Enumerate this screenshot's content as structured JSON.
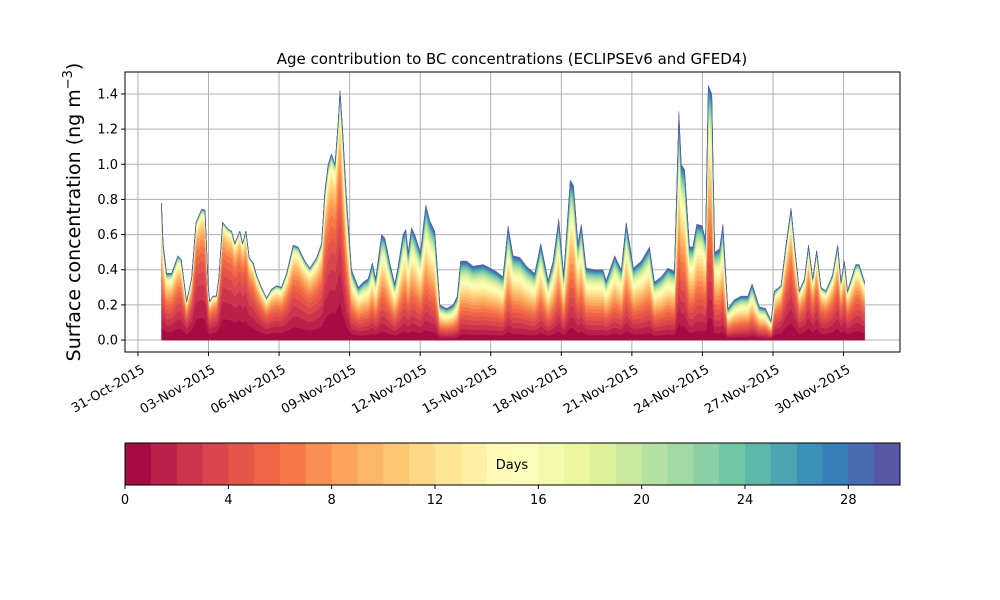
{
  "chart_data": {
    "type": "area",
    "stacked": true,
    "title": "Age contribution to BC concentrations (ECLIPSEv6 and GFED4)",
    "xlabel": "",
    "ylabel": "Surface concentration (ng m",
    "ylabel_sup": "−3",
    "ylabel_close": ")",
    "ylim": [
      -0.068,
      1.525
    ],
    "yticks": [
      "0.0",
      "0.2",
      "0.4",
      "0.6",
      "0.8",
      "1.0",
      "1.2",
      "1.4"
    ],
    "ytick_values": [
      0,
      0.2,
      0.4,
      0.6,
      0.8,
      1.0,
      1.2,
      1.4
    ],
    "x_units": "days since 01-Nov-2015",
    "xlim": [
      -1.55,
      31.4
    ],
    "xticks": [
      "31-Oct-2015",
      "03-Nov-2015",
      "06-Nov-2015",
      "09-Nov-2015",
      "12-Nov-2015",
      "15-Nov-2015",
      "18-Nov-2015",
      "21-Nov-2015",
      "24-Nov-2015",
      "27-Nov-2015",
      "30-Nov-2015"
    ],
    "xtick_values": [
      -1,
      2,
      5,
      8,
      11,
      14,
      17,
      20,
      23,
      26,
      29
    ],
    "grid": true,
    "series_description": "30 stacked age bins (0-1 ... 29-30 days); total shown below, age split by median-age profile",
    "total": [
      [
        0,
        0.78
      ],
      [
        0.07,
        0.55
      ],
      [
        0.22,
        0.38
      ],
      [
        0.43,
        0.38
      ],
      [
        0.7,
        0.48
      ],
      [
        0.84,
        0.46
      ],
      [
        1.07,
        0.22
      ],
      [
        1.28,
        0.35
      ],
      [
        1.47,
        0.67
      ],
      [
        1.71,
        0.745
      ],
      [
        1.85,
        0.74
      ],
      [
        1.99,
        0.3
      ],
      [
        2.05,
        0.22
      ],
      [
        2.19,
        0.25
      ],
      [
        2.33,
        0.25
      ],
      [
        2.44,
        0.35
      ],
      [
        2.6,
        0.67
      ],
      [
        2.84,
        0.63
      ],
      [
        2.98,
        0.62
      ],
      [
        3.12,
        0.55
      ],
      [
        3.33,
        0.62
      ],
      [
        3.45,
        0.55
      ],
      [
        3.59,
        0.62
      ],
      [
        3.73,
        0.47
      ],
      [
        3.9,
        0.44
      ],
      [
        4.04,
        0.37
      ],
      [
        4.25,
        0.3
      ],
      [
        4.47,
        0.24
      ],
      [
        4.68,
        0.29
      ],
      [
        4.9,
        0.31
      ],
      [
        5.1,
        0.3
      ],
      [
        5.32,
        0.38
      ],
      [
        5.6,
        0.54
      ],
      [
        5.81,
        0.53
      ],
      [
        6.1,
        0.45
      ],
      [
        6.31,
        0.41
      ],
      [
        6.6,
        0.47
      ],
      [
        6.81,
        0.55
      ],
      [
        6.95,
        0.85
      ],
      [
        7.09,
        1.0
      ],
      [
        7.23,
        1.06
      ],
      [
        7.38,
        1.0
      ],
      [
        7.52,
        1.25
      ],
      [
        7.59,
        1.42
      ],
      [
        7.7,
        1.2
      ],
      [
        7.87,
        0.8
      ],
      [
        8.08,
        0.4
      ],
      [
        8.37,
        0.3
      ],
      [
        8.58,
        0.33
      ],
      [
        8.79,
        0.35
      ],
      [
        8.97,
        0.44
      ],
      [
        9.11,
        0.35
      ],
      [
        9.36,
        0.6
      ],
      [
        9.5,
        0.58
      ],
      [
        9.71,
        0.44
      ],
      [
        9.92,
        0.32
      ],
      [
        10.06,
        0.42
      ],
      [
        10.27,
        0.6
      ],
      [
        10.39,
        0.63
      ],
      [
        10.49,
        0.5
      ],
      [
        10.63,
        0.64
      ],
      [
        10.77,
        0.6
      ],
      [
        11.01,
        0.5
      ],
      [
        11.24,
        0.77
      ],
      [
        11.41,
        0.68
      ],
      [
        11.62,
        0.62
      ],
      [
        11.84,
        0.2
      ],
      [
        12.12,
        0.18
      ],
      [
        12.4,
        0.2
      ],
      [
        12.58,
        0.25
      ],
      [
        12.72,
        0.45
      ],
      [
        12.97,
        0.45
      ],
      [
        13.26,
        0.42
      ],
      [
        13.68,
        0.43
      ],
      [
        13.97,
        0.41
      ],
      [
        14.24,
        0.39
      ],
      [
        14.52,
        0.36
      ],
      [
        14.74,
        0.65
      ],
      [
        14.95,
        0.48
      ],
      [
        15.24,
        0.47
      ],
      [
        15.52,
        0.42
      ],
      [
        15.87,
        0.38
      ],
      [
        16.13,
        0.55
      ],
      [
        16.44,
        0.34
      ],
      [
        16.65,
        0.45
      ],
      [
        16.89,
        0.69
      ],
      [
        17.1,
        0.37
      ],
      [
        17.38,
        0.91
      ],
      [
        17.52,
        0.88
      ],
      [
        17.71,
        0.55
      ],
      [
        17.85,
        0.66
      ],
      [
        18.06,
        0.41
      ],
      [
        18.42,
        0.4
      ],
      [
        18.77,
        0.4
      ],
      [
        18.91,
        0.34
      ],
      [
        19.27,
        0.48
      ],
      [
        19.55,
        0.4
      ],
      [
        19.76,
        0.67
      ],
      [
        20.07,
        0.41
      ],
      [
        20.4,
        0.45
      ],
      [
        20.75,
        0.53
      ],
      [
        20.96,
        0.33
      ],
      [
        21.25,
        0.36
      ],
      [
        21.53,
        0.41
      ],
      [
        21.81,
        0.39
      ],
      [
        22.0,
        1.3
      ],
      [
        22.1,
        1.0
      ],
      [
        22.24,
        0.97
      ],
      [
        22.45,
        0.53
      ],
      [
        22.59,
        0.53
      ],
      [
        22.76,
        0.66
      ],
      [
        22.99,
        0.65
      ],
      [
        23.13,
        0.57
      ],
      [
        23.25,
        1.45
      ],
      [
        23.4,
        1.4
      ],
      [
        23.52,
        0.5
      ],
      [
        23.73,
        0.52
      ],
      [
        23.87,
        0.66
      ],
      [
        24.08,
        0.18
      ],
      [
        24.36,
        0.23
      ],
      [
        24.65,
        0.25
      ],
      [
        24.93,
        0.25
      ],
      [
        25.11,
        0.32
      ],
      [
        25.42,
        0.19
      ],
      [
        25.68,
        0.18
      ],
      [
        25.92,
        0.11
      ],
      [
        26.06,
        0.28
      ],
      [
        26.34,
        0.31
      ],
      [
        26.56,
        0.55
      ],
      [
        26.77,
        0.75
      ],
      [
        26.91,
        0.55
      ],
      [
        27.12,
        0.28
      ],
      [
        27.34,
        0.35
      ],
      [
        27.51,
        0.54
      ],
      [
        27.69,
        0.35
      ],
      [
        27.86,
        0.51
      ],
      [
        28.04,
        0.3
      ],
      [
        28.25,
        0.28
      ],
      [
        28.53,
        0.37
      ],
      [
        28.75,
        0.54
      ],
      [
        28.89,
        0.33
      ],
      [
        29.03,
        0.45
      ],
      [
        29.17,
        0.28
      ],
      [
        29.52,
        0.43
      ],
      [
        29.66,
        0.43
      ],
      [
        29.9,
        0.33
      ]
    ],
    "median_age_profile_days": [
      [
        0,
        9
      ],
      [
        1.5,
        5
      ],
      [
        2,
        6
      ],
      [
        2.5,
        5
      ],
      [
        3.5,
        5
      ],
      [
        4.5,
        7
      ],
      [
        6.5,
        7
      ],
      [
        7.6,
        6
      ],
      [
        8,
        12
      ],
      [
        11,
        14
      ],
      [
        12,
        16
      ],
      [
        20,
        14
      ],
      [
        22,
        14
      ],
      [
        23.3,
        12
      ],
      [
        24,
        16
      ],
      [
        25.9,
        16
      ],
      [
        26.1,
        7
      ],
      [
        29.9,
        8
      ]
    ],
    "colorbar": {
      "label": "Days",
      "range": [
        0,
        30
      ],
      "bins": 30,
      "ticks": [
        "0",
        "4",
        "8",
        "12",
        "16",
        "20",
        "24",
        "28"
      ],
      "tick_values": [
        0,
        4,
        8,
        12,
        16,
        20,
        24,
        28
      ]
    },
    "colormap_anchors": [
      "#9e0142",
      "#d53e4f",
      "#f46d43",
      "#fdae61",
      "#fee08b",
      "#ffffbf",
      "#e6f598",
      "#abdda4",
      "#66c2a5",
      "#3288bd",
      "#5e4fa2"
    ]
  }
}
